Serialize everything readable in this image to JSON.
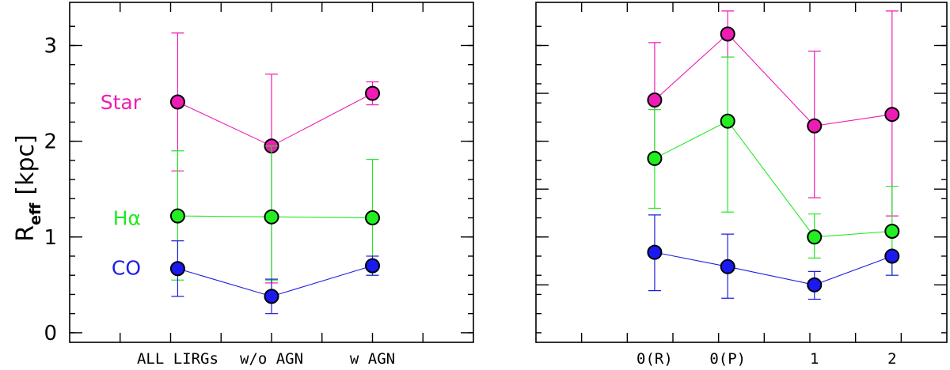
{
  "figure": {
    "ylabel_main": "R",
    "ylabel_sub": "eff",
    "ylabel_unit": "[kpc]"
  },
  "chart_data": [
    {
      "type": "line",
      "panel": "left",
      "categories": [
        "ALL LIRGs",
        "w/o AGN",
        "w AGN"
      ],
      "xlim": [
        0,
        4
      ],
      "ylim": [
        -0.1,
        3.45
      ],
      "yticks": [
        0,
        1,
        2,
        3
      ],
      "ytick_labels": [
        "0",
        "1",
        "2",
        "3"
      ],
      "ylabel": "R_eff [kpc]",
      "series": [
        {
          "name": "Star",
          "color": "#ee1cb4",
          "marker": "#ee1cb4",
          "values": [
            2.41,
            1.95,
            2.5
          ],
          "err_low": [
            1.69,
            0.52,
            2.38
          ],
          "err_high": [
            3.13,
            2.7,
            2.62
          ]
        },
        {
          "name": "Hα",
          "color": "#22e822",
          "marker": "#22ee22",
          "values": [
            1.22,
            1.21,
            1.2
          ],
          "err_low": [
            0.55,
            0.55,
            0.6
          ],
          "err_high": [
            1.9,
            1.95,
            1.81
          ]
        },
        {
          "name": "CO",
          "color": "#1f1fe0",
          "marker": "#1a1af0",
          "values": [
            0.67,
            0.38,
            0.7
          ],
          "err_low": [
            0.38,
            0.2,
            0.6
          ],
          "err_high": [
            0.96,
            0.56,
            0.8
          ]
        }
      ],
      "annotations": [
        "Star",
        "Hα",
        "CO"
      ]
    },
    {
      "type": "line",
      "panel": "right",
      "categories": [
        "0(R)",
        "0(P)",
        "1",
        "2"
      ],
      "xlim": [
        -1.5,
        3
      ],
      "ylim": [
        -0.1,
        3.45
      ],
      "yticks": [
        0.5,
        1,
        1.5,
        2,
        2.5,
        3
      ],
      "series": [
        {
          "name": "Star",
          "color": "#ee1cb4",
          "marker": "#ee1cb4",
          "values": [
            2.43,
            3.12,
            2.16,
            2.28
          ],
          "err_low": [
            1.82,
            2.88,
            1.41,
            1.22
          ],
          "err_high": [
            3.03,
            3.36,
            2.94,
            3.36
          ]
        },
        {
          "name": "Hα",
          "color": "#22e822",
          "marker": "#22ee22",
          "values": [
            1.82,
            2.21,
            1.0,
            1.06
          ],
          "err_low": [
            1.3,
            1.26,
            0.78,
            0.6
          ],
          "err_high": [
            2.33,
            2.88,
            1.24,
            1.53
          ]
        },
        {
          "name": "CO",
          "color": "#1f1fe0",
          "marker": "#1a1af0",
          "values": [
            0.84,
            0.69,
            0.5,
            0.8
          ],
          "err_low": [
            0.44,
            0.36,
            0.35,
            0.6
          ],
          "err_high": [
            1.23,
            1.03,
            0.64,
            0.82
          ]
        }
      ]
    }
  ]
}
